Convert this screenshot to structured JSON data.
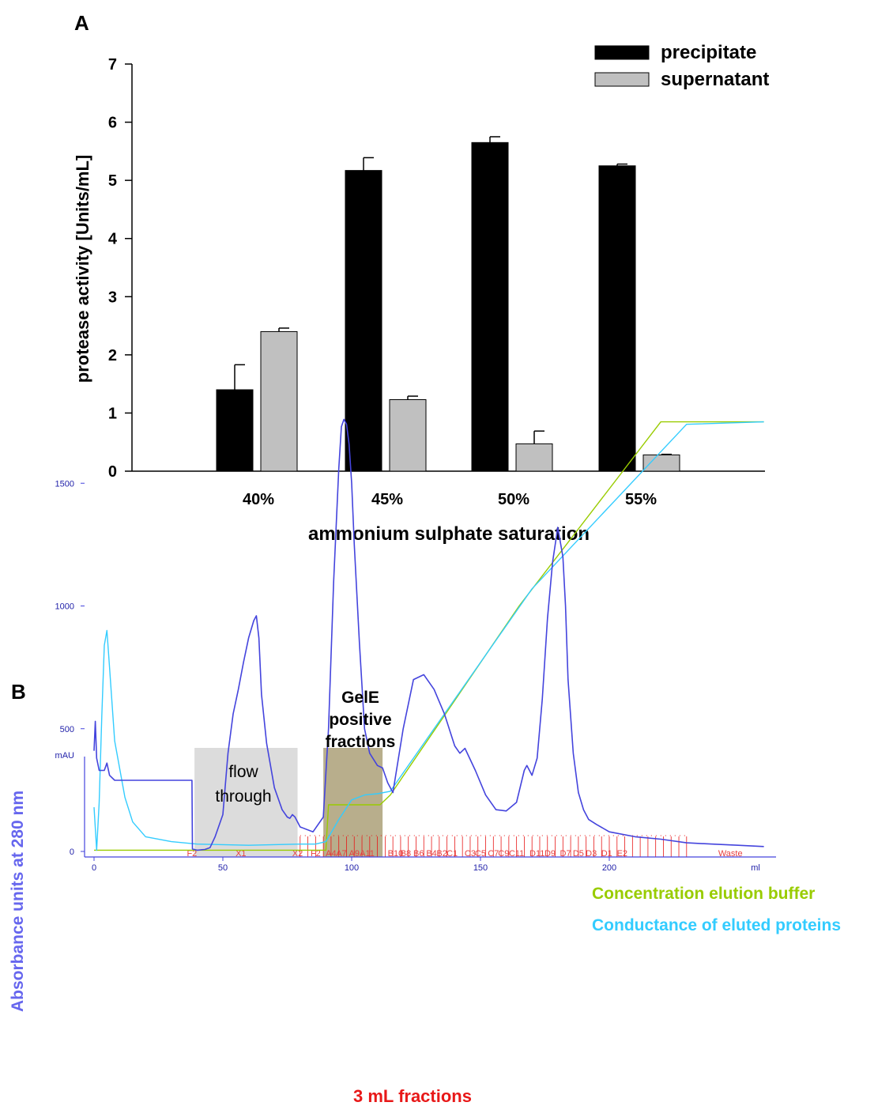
{
  "panels": {
    "a_label": "A",
    "b_label": "B"
  },
  "chart_data": [
    {
      "type": "bar",
      "categories": [
        "40%",
        "45%",
        "50%",
        "55%"
      ],
      "xlabel": "ammonium sulphate saturation",
      "ylabel": "protease activity [Units/mL]",
      "ylim": [
        0,
        7
      ],
      "yticks": [
        "0",
        "1",
        "2",
        "3",
        "4",
        "5",
        "6",
        "7"
      ],
      "legend_position": "top-right",
      "series": [
        {
          "name": "precipitate",
          "color": "#000000",
          "values": [
            1.4,
            5.17,
            5.65,
            5.25
          ],
          "errors": [
            0.43,
            0.22,
            0.1,
            0.03
          ]
        },
        {
          "name": "supernatant",
          "color": "#c0c0c0",
          "values": [
            2.4,
            1.23,
            0.47,
            0.28
          ],
          "errors": [
            0.06,
            0.06,
            0.22,
            0.01
          ]
        }
      ]
    },
    {
      "type": "line",
      "unit_label": "mAU",
      "x_unit_label": "ml",
      "ylabel": "Absorbance units at 280 nm",
      "xlabel": "3 mL fractions",
      "xlim": [
        -4,
        265
      ],
      "ylim": [
        -10,
        1790
      ],
      "xticks": [
        "0",
        "50",
        "100",
        "150",
        "200"
      ],
      "yticks": [
        "0",
        "500",
        "1000",
        "1500"
      ],
      "shaded_regions": [
        {
          "label": "flow through",
          "range": [
            39,
            79
          ],
          "color": "#dcdcdc"
        },
        {
          "label": "GelE positive fractions",
          "range": [
            89,
            112
          ],
          "color": "#b8ae8c"
        }
      ],
      "annotations": [
        {
          "text": "Concentration elution buffer",
          "color": "#99cc00"
        },
        {
          "text": "Conductance of eluted proteins",
          "color": "#33ccff"
        }
      ],
      "fraction_labels": [
        "F2",
        "X1",
        "X2",
        "F2",
        "A4",
        "A7",
        "A9",
        "A11",
        "B10",
        "B8",
        "B6",
        "B4",
        "B2",
        "C1",
        "C3",
        "C5",
        "C7",
        "C9",
        "C11",
        "D11",
        "D9",
        "D7",
        "D5",
        "D3",
        "D1",
        "E2",
        "Waste"
      ],
      "series": [
        {
          "name": "absorbance 280 nm",
          "color": "#4444dd",
          "x": [
            0,
            0.5,
            1,
            2,
            3,
            4,
            5,
            6,
            8,
            12,
            20,
            30,
            38,
            38.2,
            40,
            43,
            45,
            47,
            50,
            52,
            54,
            56,
            58,
            60,
            62,
            63,
            64,
            65,
            67,
            70,
            73,
            75,
            76,
            77,
            78,
            80,
            85,
            89,
            91,
            93,
            95,
            96,
            97,
            98,
            99,
            100,
            101,
            103,
            105,
            107,
            110,
            112,
            114,
            116,
            120,
            124,
            128,
            132,
            136,
            140,
            142,
            144,
            148,
            152,
            156,
            160,
            164,
            167,
            168,
            170,
            172,
            174,
            176,
            178,
            180,
            182,
            183,
            184,
            186,
            188,
            190,
            192,
            195,
            200,
            210,
            220,
            230,
            240,
            250,
            260
          ],
          "y": [
            410,
            530,
            380,
            330,
            330,
            330,
            360,
            310,
            290,
            290,
            290,
            290,
            290,
            10,
            5,
            8,
            15,
            60,
            150,
            400,
            560,
            660,
            770,
            870,
            940,
            960,
            870,
            640,
            440,
            260,
            170,
            140,
            135,
            150,
            140,
            100,
            80,
            140,
            500,
            1100,
            1560,
            1730,
            1760,
            1740,
            1660,
            1500,
            1250,
            850,
            500,
            400,
            350,
            340,
            280,
            240,
            500,
            700,
            720,
            660,
            560,
            430,
            400,
            420,
            330,
            230,
            170,
            165,
            200,
            330,
            350,
            310,
            380,
            620,
            950,
            1180,
            1320,
            1200,
            1000,
            700,
            400,
            240,
            170,
            130,
            110,
            80,
            60,
            50,
            35,
            30,
            25,
            20
          ]
        },
        {
          "name": "conductance",
          "color": "#33ccff",
          "x": [
            0,
            1,
            2,
            3,
            4,
            5,
            6,
            8,
            12,
            15,
            20,
            30,
            40,
            60,
            80,
            86,
            90,
            95,
            100,
            105,
            110,
            115,
            170,
            230,
            260
          ],
          "y": [
            180,
            5,
            200,
            550,
            840,
            900,
            750,
            450,
            220,
            120,
            60,
            40,
            30,
            25,
            30,
            30,
            40,
            130,
            210,
            230,
            235,
            245,
            1070,
            1740,
            1750
          ]
        },
        {
          "name": "elution buffer",
          "color": "#99cc00",
          "x": [
            0,
            90,
            91,
            111,
            115,
            165,
            220,
            228,
            235,
            245,
            260
          ],
          "y": [
            5,
            5,
            190,
            190,
            230,
            1000,
            1750,
            1750,
            1750,
            1750,
            1750
          ]
        }
      ]
    }
  ]
}
